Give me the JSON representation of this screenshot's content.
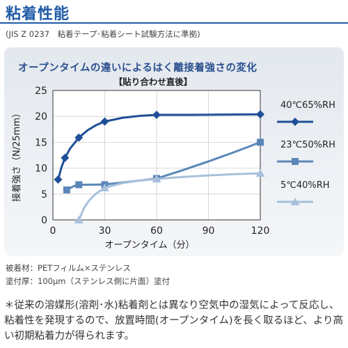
{
  "page": {
    "title": "粘着性能",
    "standard_note": "(JIS Z 0237　粘着テープ･粘着シート試験方法に準拠)",
    "footnotes": [
      "被着材：PETフィルム×ステンレス",
      "塗付厚：100μm（ステンレス側に片面）塗付"
    ],
    "remark": "＊従来の溶媒形(溶剤･水)粘着剤とは異なり空気中の湿気によって反応し、粘着性を発現するので、放置時間(オープンタイム)を長く取るほど、より高い初期粘着力が得られます。"
  },
  "colors": {
    "title_blue": "#1f5aa6",
    "series_dark": "#1f4f98",
    "series_mid": "#5a86b8",
    "series_light": "#a9c0da",
    "axis": "#333333"
  },
  "chart_data": {
    "type": "line",
    "title": "オープンタイムの違いによるはく離接着強さの変化",
    "subtitle": "【貼り合わせ直後】",
    "xlabel": "オープンタイム（分）",
    "ylabel": "接着強さ（N/25mm）",
    "xlim": [
      0,
      120
    ],
    "ylim": [
      0,
      25
    ],
    "xticks": [
      0,
      30,
      60,
      90,
      120
    ],
    "yticks": [
      0,
      5,
      10,
      15,
      20,
      25
    ],
    "grid": true,
    "legend_position": "right",
    "series": [
      {
        "name": "40℃65%RH",
        "marker": "diamond",
        "color": "#1f4f98",
        "points": [
          [
            3,
            7.8
          ],
          [
            7,
            12
          ],
          [
            15,
            15.9
          ],
          [
            30,
            19
          ],
          [
            60,
            20.3
          ],
          [
            120,
            20.4
          ]
        ],
        "curve": [
          [
            3,
            7.8
          ],
          [
            5,
            10.2
          ],
          [
            7,
            12
          ],
          [
            10,
            13.8
          ],
          [
            15,
            15.9
          ],
          [
            20,
            17.3
          ],
          [
            25,
            18.3
          ],
          [
            30,
            19
          ],
          [
            40,
            19.7
          ],
          [
            50,
            20.1
          ],
          [
            60,
            20.3
          ],
          [
            80,
            20.3
          ],
          [
            100,
            20.35
          ],
          [
            120,
            20.4
          ]
        ]
      },
      {
        "name": "23℃50%RH",
        "marker": "square",
        "color": "#5a86b8",
        "points": [
          [
            8,
            5.8
          ],
          [
            15,
            6.8
          ],
          [
            30,
            6.8
          ],
          [
            60,
            8
          ],
          [
            120,
            15
          ]
        ],
        "curve": [
          [
            8,
            5.8
          ],
          [
            12,
            6.5
          ],
          [
            15,
            6.8
          ],
          [
            22,
            6.8
          ],
          [
            30,
            6.85
          ],
          [
            40,
            7.2
          ],
          [
            50,
            7.6
          ],
          [
            60,
            8
          ],
          [
            75,
            9.6
          ],
          [
            90,
            11.3
          ],
          [
            105,
            13.1
          ],
          [
            120,
            15
          ]
        ]
      },
      {
        "name": "5℃40%RH",
        "marker": "triangle",
        "color": "#a9c0da",
        "points": [
          [
            15,
            0
          ],
          [
            30,
            6.2
          ],
          [
            60,
            7.9
          ],
          [
            120,
            9
          ]
        ],
        "curve": [
          [
            15,
            0
          ],
          [
            18,
            2.3
          ],
          [
            21,
            3.8
          ],
          [
            25,
            5.1
          ],
          [
            30,
            6.2
          ],
          [
            40,
            7.1
          ],
          [
            50,
            7.6
          ],
          [
            60,
            7.9
          ],
          [
            75,
            8.3
          ],
          [
            90,
            8.6
          ],
          [
            105,
            8.85
          ],
          [
            120,
            9
          ]
        ]
      }
    ]
  }
}
